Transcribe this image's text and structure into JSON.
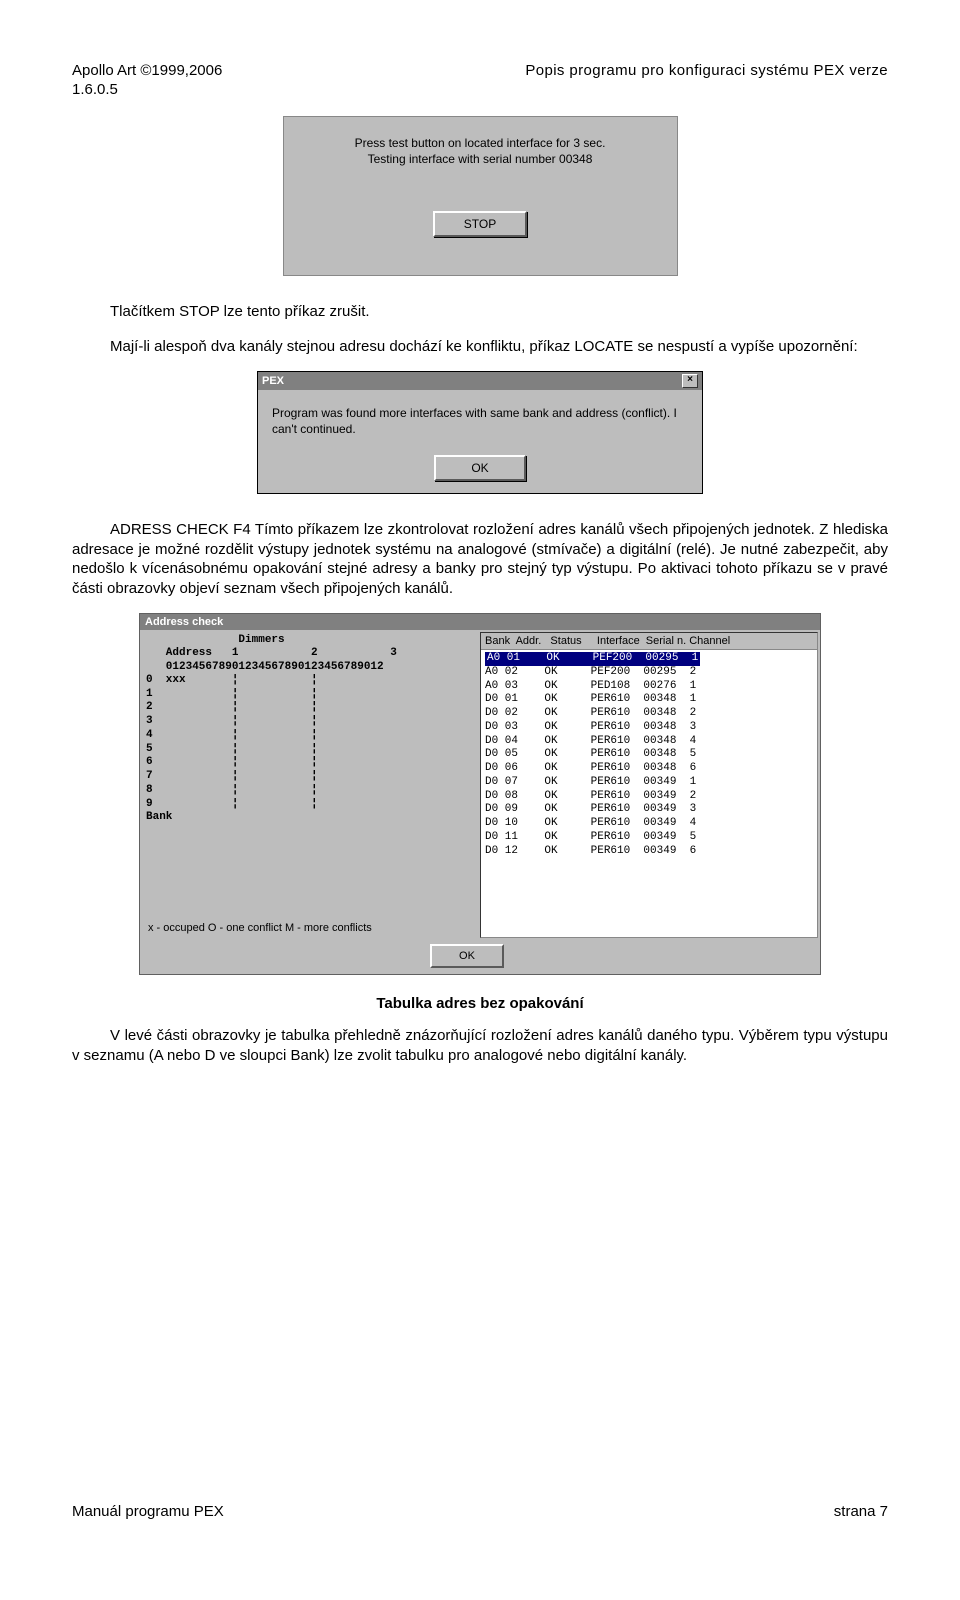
{
  "header": {
    "left": "Apollo Art ©1999,2006",
    "right": "Popis  programu  pro  konfiguraci  systému  PEX  verze",
    "version": "1.6.0.5"
  },
  "gray_dialog1": {
    "line1": "Press test button on located interface for 3 sec.",
    "line2": "Testing interface with serial number 00348",
    "stop": "STOP"
  },
  "para1": "Tlačítkem STOP lze tento příkaz zrušit.",
  "para2": "Mají-li alespoň dva kanály stejnou adresu dochází ke konfliktu, příkaz LOCATE se nespustí a vypíše upozornění:",
  "pex_dialog": {
    "title": "PEX",
    "body1": "Program was found more interfaces with same bank and address (conflict). I",
    "body2": "can't continued.",
    "ok": "OK"
  },
  "para3": "ADRESS CHECK F4 Tímto příkazem lze zkontrolovat rozložení adres kanálů všech připojených jednotek. Z hlediska adresace je možné rozdělit výstupy jednotek systému na analogové (stmívače) a digitální (relé). Je nutné zabezpečit, aby nedošlo k vícenásobnému opakování stejné adresy a banky pro stejný typ výstupu. Po aktivaci tohoto příkazu se v pravé části obrazovky objeví seznam všech připojených kanálů.",
  "addr_check": {
    "title": "Address check",
    "left_head1": "              Dimmers",
    "left_head2": "   Address   1           2           3",
    "left_head3": "   012345678901234567890123456789012",
    "left_rows": [
      "0  xxx       ¦           ¦",
      "1            ¦           ¦",
      "2            ¦           ¦",
      "3            ¦           ¦",
      "4            ¦           ¦",
      "5            ¦           ¦",
      "6            ¦           ¦",
      "7            ¦           ¦",
      "8            ¦           ¦",
      "9            ¦           ¦"
    ],
    "left_bank": "Bank",
    "left_foot": "x - occuped  O - one conflict  M - more conflicts",
    "right_head": "Bank  Addr.   Status     Interface  Serial n. Channel",
    "right_rows": [
      "A0 01    OK     PEF200  00295  1",
      "A0 02    OK     PEF200  00295  2",
      "A0 03    OK     PED108  00276  1",
      "D0 01    OK     PER610  00348  1",
      "D0 02    OK     PER610  00348  2",
      "D0 03    OK     PER610  00348  3",
      "D0 04    OK     PER610  00348  4",
      "D0 05    OK     PER610  00348  5",
      "D0 06    OK     PER610  00348  6",
      "D0 07    OK     PER610  00349  1",
      "D0 08    OK     PER610  00349  2",
      "D0 09    OK     PER610  00349  3",
      "D0 10    OK     PER610  00349  4",
      "D0 11    OK     PER610  00349  5",
      "D0 12    OK     PER610  00349  6"
    ],
    "ok": "OK"
  },
  "caption": "Tabulka adres bez opakování",
  "para4": "V levé části obrazovky je tabulka přehledně znázorňující rozložení adres kanálů daného typu. Výběrem typu výstupu v seznamu (A nebo D ve sloupci Bank) lze zvolit tabulku pro analogové nebo digitální kanály.",
  "footer": {
    "left": "Manuál programu PEX",
    "right": "strana 7"
  }
}
